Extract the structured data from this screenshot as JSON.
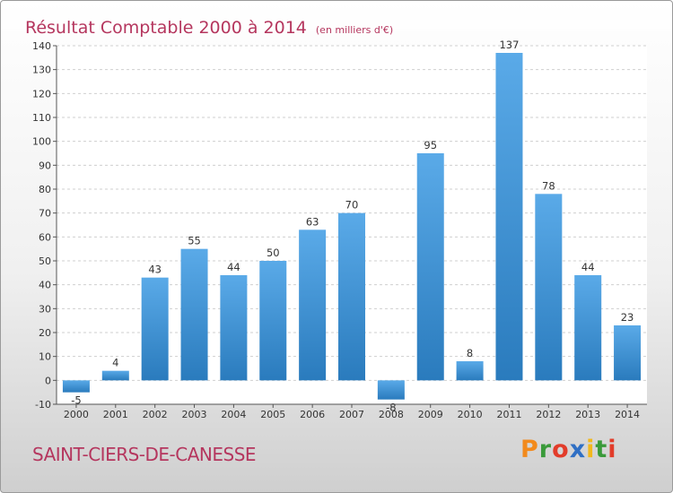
{
  "header": {
    "title": "Résultat Comptable 2000 à 2014",
    "unit": "(en milliers d'€)"
  },
  "footer": {
    "commune": "SAINT-CIERS-DE-CANESSE",
    "logo": {
      "letters": [
        "P",
        "r",
        "o",
        "x",
        "i",
        "t",
        "i"
      ],
      "colors": [
        "#f28a1c",
        "#3a9a3a",
        "#e23c2a",
        "#2f6fc4",
        "#f2b81c",
        "#3a9a3a",
        "#e23c2a"
      ]
    }
  },
  "colors": {
    "bar": "#4a9de0",
    "bar_dark": "#2d7fc4",
    "text": "#b5365e"
  },
  "chart_data": {
    "type": "bar",
    "title": "Résultat Comptable 2000 à 2014",
    "subtitle": "(en milliers d'€)",
    "categories": [
      "2000",
      "2001",
      "2002",
      "2003",
      "2004",
      "2005",
      "2006",
      "2007",
      "2008",
      "2009",
      "2010",
      "2011",
      "2012",
      "2013",
      "2014"
    ],
    "values": [
      -5,
      4,
      43,
      55,
      44,
      50,
      63,
      70,
      -8,
      95,
      8,
      137,
      78,
      44,
      23
    ],
    "ylim": [
      -10,
      140
    ],
    "yticks": [
      -10,
      0,
      10,
      20,
      30,
      40,
      50,
      60,
      70,
      80,
      90,
      100,
      110,
      120,
      130,
      140
    ],
    "grid": true,
    "data_labels": true
  }
}
